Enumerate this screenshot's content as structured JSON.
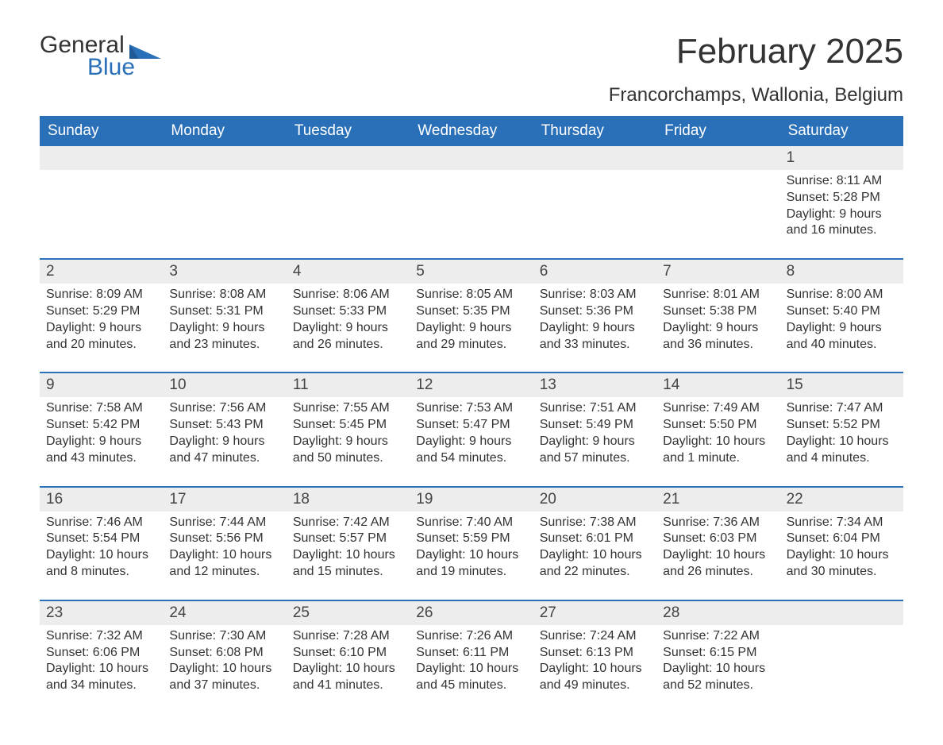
{
  "brand": {
    "part1": "General",
    "part2": "Blue"
  },
  "title": "February 2025",
  "location": "Francorchamps, Wallonia, Belgium",
  "colors": {
    "accent": "#2a70b8",
    "band": "#ededed",
    "text": "#333333",
    "white": "#ffffff"
  },
  "daysOfWeek": [
    "Sunday",
    "Monday",
    "Tuesday",
    "Wednesday",
    "Thursday",
    "Friday",
    "Saturday"
  ],
  "weeks": [
    [
      null,
      null,
      null,
      null,
      null,
      null,
      {
        "n": "1",
        "sunrise": "Sunrise: 8:11 AM",
        "sunset": "Sunset: 5:28 PM",
        "day1": "Daylight: 9 hours",
        "day2": "and 16 minutes."
      }
    ],
    [
      {
        "n": "2",
        "sunrise": "Sunrise: 8:09 AM",
        "sunset": "Sunset: 5:29 PM",
        "day1": "Daylight: 9 hours",
        "day2": "and 20 minutes."
      },
      {
        "n": "3",
        "sunrise": "Sunrise: 8:08 AM",
        "sunset": "Sunset: 5:31 PM",
        "day1": "Daylight: 9 hours",
        "day2": "and 23 minutes."
      },
      {
        "n": "4",
        "sunrise": "Sunrise: 8:06 AM",
        "sunset": "Sunset: 5:33 PM",
        "day1": "Daylight: 9 hours",
        "day2": "and 26 minutes."
      },
      {
        "n": "5",
        "sunrise": "Sunrise: 8:05 AM",
        "sunset": "Sunset: 5:35 PM",
        "day1": "Daylight: 9 hours",
        "day2": "and 29 minutes."
      },
      {
        "n": "6",
        "sunrise": "Sunrise: 8:03 AM",
        "sunset": "Sunset: 5:36 PM",
        "day1": "Daylight: 9 hours",
        "day2": "and 33 minutes."
      },
      {
        "n": "7",
        "sunrise": "Sunrise: 8:01 AM",
        "sunset": "Sunset: 5:38 PM",
        "day1": "Daylight: 9 hours",
        "day2": "and 36 minutes."
      },
      {
        "n": "8",
        "sunrise": "Sunrise: 8:00 AM",
        "sunset": "Sunset: 5:40 PM",
        "day1": "Daylight: 9 hours",
        "day2": "and 40 minutes."
      }
    ],
    [
      {
        "n": "9",
        "sunrise": "Sunrise: 7:58 AM",
        "sunset": "Sunset: 5:42 PM",
        "day1": "Daylight: 9 hours",
        "day2": "and 43 minutes."
      },
      {
        "n": "10",
        "sunrise": "Sunrise: 7:56 AM",
        "sunset": "Sunset: 5:43 PM",
        "day1": "Daylight: 9 hours",
        "day2": "and 47 minutes."
      },
      {
        "n": "11",
        "sunrise": "Sunrise: 7:55 AM",
        "sunset": "Sunset: 5:45 PM",
        "day1": "Daylight: 9 hours",
        "day2": "and 50 minutes."
      },
      {
        "n": "12",
        "sunrise": "Sunrise: 7:53 AM",
        "sunset": "Sunset: 5:47 PM",
        "day1": "Daylight: 9 hours",
        "day2": "and 54 minutes."
      },
      {
        "n": "13",
        "sunrise": "Sunrise: 7:51 AM",
        "sunset": "Sunset: 5:49 PM",
        "day1": "Daylight: 9 hours",
        "day2": "and 57 minutes."
      },
      {
        "n": "14",
        "sunrise": "Sunrise: 7:49 AM",
        "sunset": "Sunset: 5:50 PM",
        "day1": "Daylight: 10 hours",
        "day2": "and 1 minute."
      },
      {
        "n": "15",
        "sunrise": "Sunrise: 7:47 AM",
        "sunset": "Sunset: 5:52 PM",
        "day1": "Daylight: 10 hours",
        "day2": "and 4 minutes."
      }
    ],
    [
      {
        "n": "16",
        "sunrise": "Sunrise: 7:46 AM",
        "sunset": "Sunset: 5:54 PM",
        "day1": "Daylight: 10 hours",
        "day2": "and 8 minutes."
      },
      {
        "n": "17",
        "sunrise": "Sunrise: 7:44 AM",
        "sunset": "Sunset: 5:56 PM",
        "day1": "Daylight: 10 hours",
        "day2": "and 12 minutes."
      },
      {
        "n": "18",
        "sunrise": "Sunrise: 7:42 AM",
        "sunset": "Sunset: 5:57 PM",
        "day1": "Daylight: 10 hours",
        "day2": "and 15 minutes."
      },
      {
        "n": "19",
        "sunrise": "Sunrise: 7:40 AM",
        "sunset": "Sunset: 5:59 PM",
        "day1": "Daylight: 10 hours",
        "day2": "and 19 minutes."
      },
      {
        "n": "20",
        "sunrise": "Sunrise: 7:38 AM",
        "sunset": "Sunset: 6:01 PM",
        "day1": "Daylight: 10 hours",
        "day2": "and 22 minutes."
      },
      {
        "n": "21",
        "sunrise": "Sunrise: 7:36 AM",
        "sunset": "Sunset: 6:03 PM",
        "day1": "Daylight: 10 hours",
        "day2": "and 26 minutes."
      },
      {
        "n": "22",
        "sunrise": "Sunrise: 7:34 AM",
        "sunset": "Sunset: 6:04 PM",
        "day1": "Daylight: 10 hours",
        "day2": "and 30 minutes."
      }
    ],
    [
      {
        "n": "23",
        "sunrise": "Sunrise: 7:32 AM",
        "sunset": "Sunset: 6:06 PM",
        "day1": "Daylight: 10 hours",
        "day2": "and 34 minutes."
      },
      {
        "n": "24",
        "sunrise": "Sunrise: 7:30 AM",
        "sunset": "Sunset: 6:08 PM",
        "day1": "Daylight: 10 hours",
        "day2": "and 37 minutes."
      },
      {
        "n": "25",
        "sunrise": "Sunrise: 7:28 AM",
        "sunset": "Sunset: 6:10 PM",
        "day1": "Daylight: 10 hours",
        "day2": "and 41 minutes."
      },
      {
        "n": "26",
        "sunrise": "Sunrise: 7:26 AM",
        "sunset": "Sunset: 6:11 PM",
        "day1": "Daylight: 10 hours",
        "day2": "and 45 minutes."
      },
      {
        "n": "27",
        "sunrise": "Sunrise: 7:24 AM",
        "sunset": "Sunset: 6:13 PM",
        "day1": "Daylight: 10 hours",
        "day2": "and 49 minutes."
      },
      {
        "n": "28",
        "sunrise": "Sunrise: 7:22 AM",
        "sunset": "Sunset: 6:15 PM",
        "day1": "Daylight: 10 hours",
        "day2": "and 52 minutes."
      },
      null
    ]
  ]
}
